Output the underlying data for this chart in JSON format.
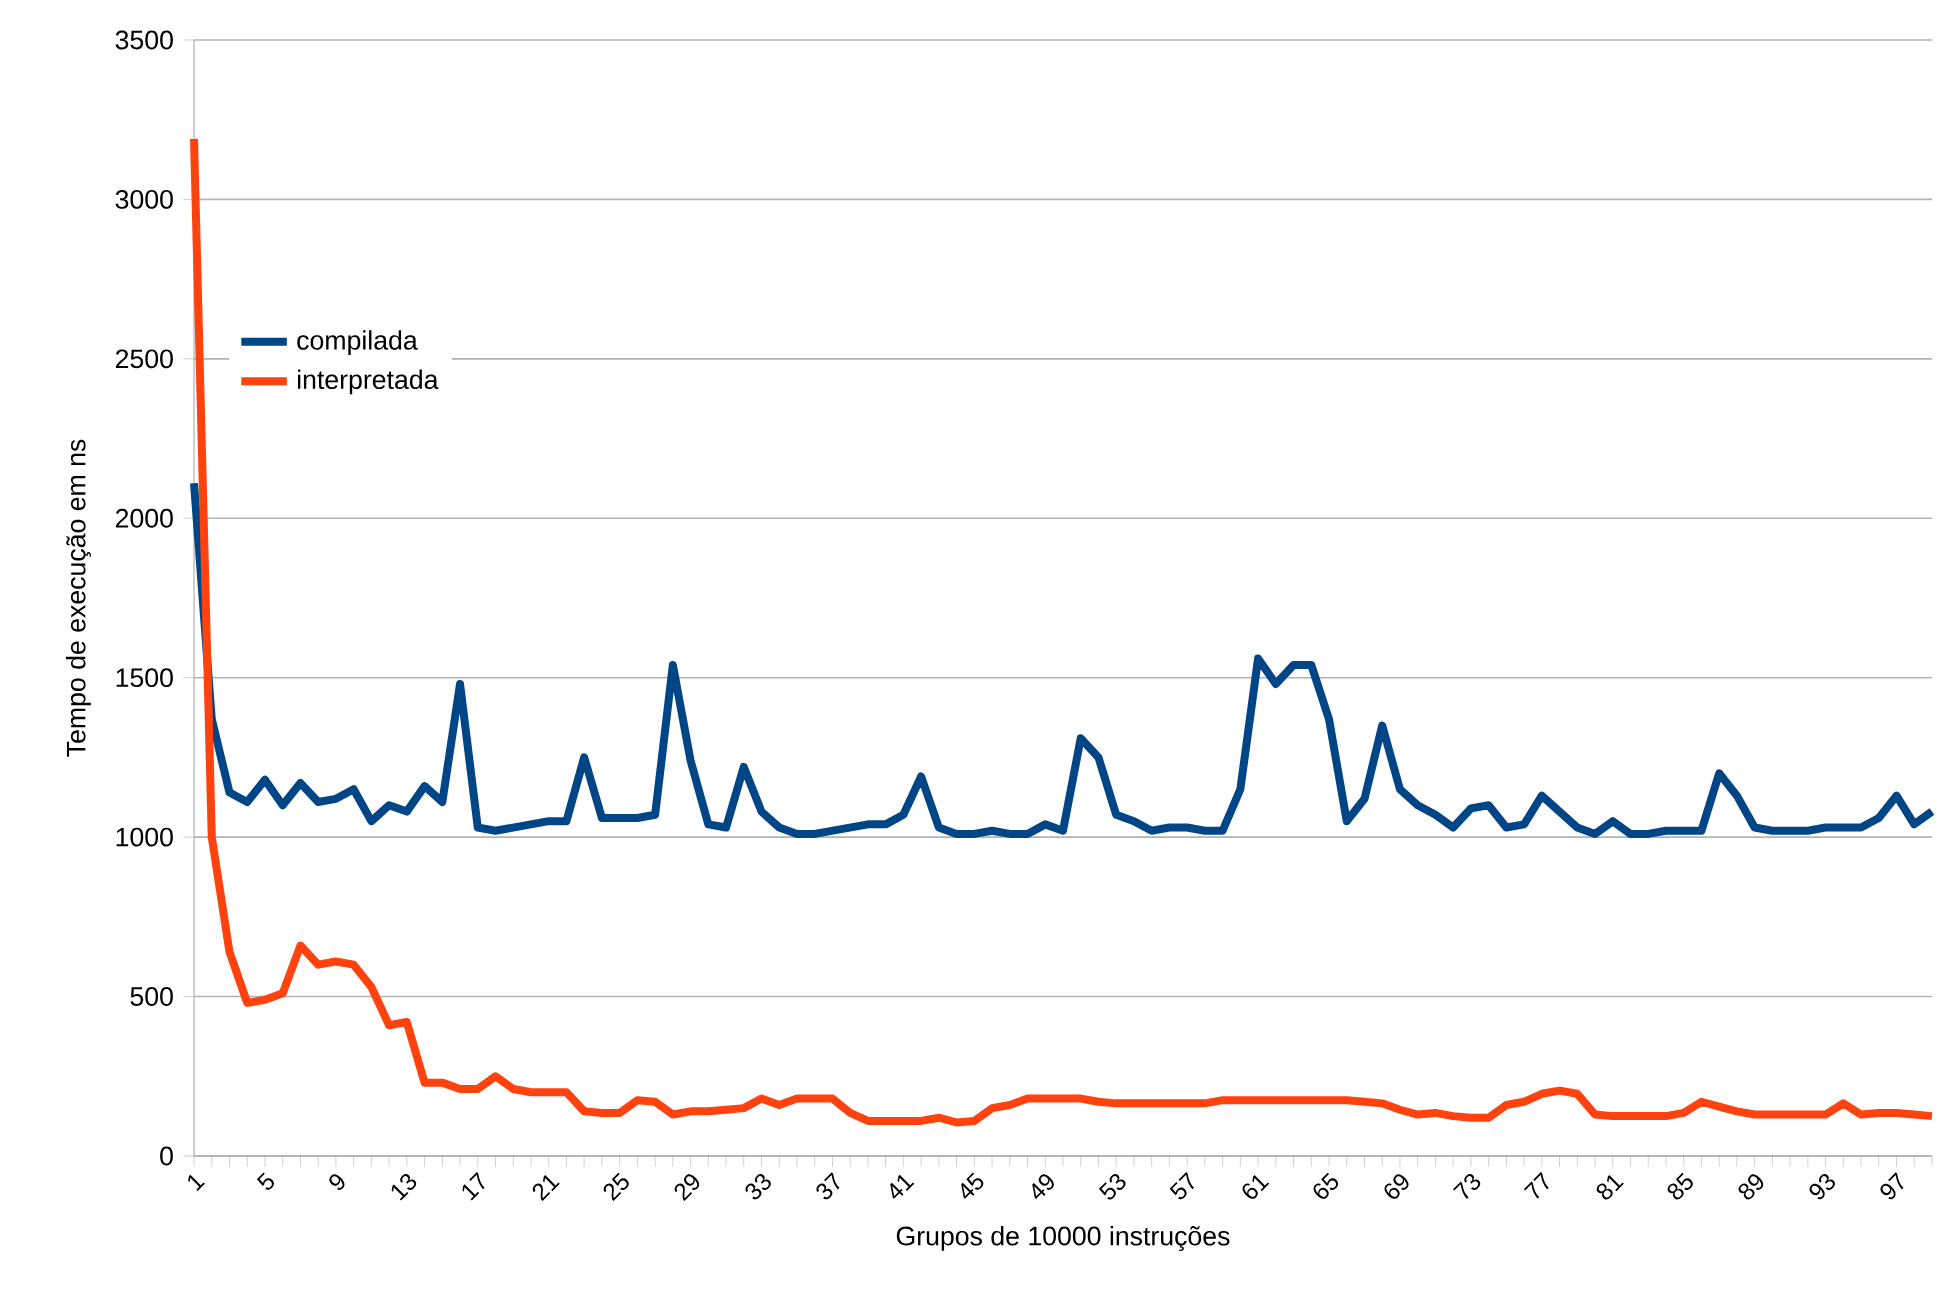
{
  "chart_data": {
    "type": "line",
    "xlabel": "Grupos de 10000 instruções",
    "ylabel": "Tempo de execução em ns",
    "categories": [
      "1",
      null,
      null,
      null,
      "5",
      null,
      null,
      null,
      "9",
      null,
      null,
      null,
      "13",
      null,
      null,
      null,
      "17",
      null,
      null,
      null,
      "21",
      null,
      null,
      null,
      "25",
      null,
      null,
      null,
      "29",
      null,
      null,
      null,
      "33",
      null,
      null,
      null,
      "37",
      null,
      null,
      null,
      "41",
      null,
      null,
      null,
      "45",
      null,
      null,
      null,
      "49",
      null,
      null,
      null,
      "53",
      null,
      null,
      null,
      "57",
      null,
      null,
      null,
      "61",
      null,
      null,
      null,
      "65",
      null,
      null,
      null,
      "69",
      null,
      null,
      null,
      "73",
      null,
      null,
      null,
      "77",
      null,
      null,
      null,
      "81",
      null,
      null,
      null,
      "85",
      null,
      null,
      null,
      "89",
      null,
      null,
      null,
      "93",
      null,
      null,
      null,
      "97",
      null,
      null
    ],
    "series": [
      {
        "name": "compilada",
        "color": "#004586",
        "values": [
          2110,
          1370,
          1140,
          1110,
          1180,
          1100,
          1170,
          1110,
          1120,
          1150,
          1050,
          1100,
          1080,
          1160,
          1110,
          1480,
          1030,
          1020,
          1030,
          1040,
          1050,
          1050,
          1250,
          1060,
          1060,
          1060,
          1070,
          1540,
          1240,
          1040,
          1030,
          1220,
          1080,
          1030,
          1010,
          1010,
          1020,
          1030,
          1040,
          1040,
          1070,
          1190,
          1030,
          1010,
          1010,
          1020,
          1010,
          1010,
          1040,
          1020,
          1310,
          1250,
          1070,
          1050,
          1020,
          1030,
          1030,
          1020,
          1020,
          1150,
          1560,
          1480,
          1540,
          1540,
          1370,
          1050,
          1120,
          1350,
          1150,
          1100,
          1070,
          1030,
          1090,
          1100,
          1030,
          1040,
          1130,
          1080,
          1030,
          1010,
          1050,
          1010,
          1010,
          1020,
          1020,
          1020,
          1200,
          1130,
          1030,
          1020,
          1020,
          1020,
          1030,
          1030,
          1030,
          1060,
          1130,
          1040,
          1080
        ]
      },
      {
        "name": "interpretada",
        "color": "#ff420e",
        "values": [
          3190,
          1000,
          640,
          480,
          490,
          510,
          660,
          600,
          610,
          600,
          530,
          410,
          420,
          230,
          230,
          210,
          210,
          250,
          210,
          200,
          200,
          200,
          140,
          135,
          135,
          175,
          170,
          130,
          140,
          140,
          145,
          150,
          180,
          160,
          180,
          180,
          180,
          135,
          110,
          110,
          110,
          110,
          120,
          105,
          110,
          150,
          160,
          180,
          180,
          180,
          180,
          170,
          165,
          165,
          165,
          165,
          165,
          165,
          175,
          175,
          175,
          175,
          175,
          175,
          175,
          175,
          170,
          165,
          145,
          130,
          135,
          125,
          120,
          120,
          160,
          170,
          195,
          205,
          195,
          130,
          125,
          125,
          125,
          125,
          135,
          170,
          155,
          140,
          130,
          130,
          130,
          130,
          130,
          165,
          130,
          135,
          135,
          130,
          125
        ]
      }
    ],
    "ylim": [
      0,
      3500
    ],
    "yticks": [
      0,
      500,
      1000,
      1500,
      2000,
      2500,
      3000,
      3500
    ],
    "grid": "y",
    "legend": "top left",
    "marker": "none",
    "line_style": "solid"
  }
}
